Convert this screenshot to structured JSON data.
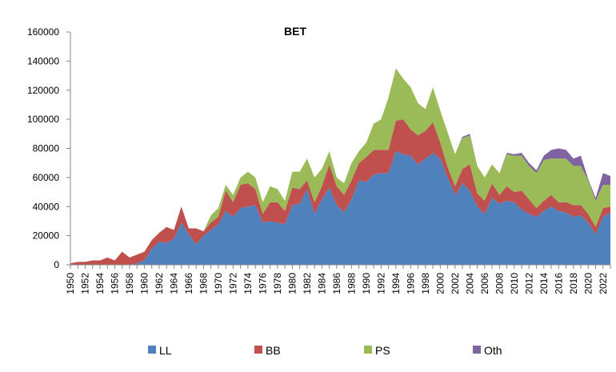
{
  "chart_data": {
    "type": "area",
    "stacked": true,
    "title": "BET",
    "xlabel": "",
    "ylabel": "",
    "ylim": [
      0,
      160000
    ],
    "y_ticks": [
      0,
      20000,
      40000,
      60000,
      80000,
      100000,
      120000,
      140000,
      160000
    ],
    "x_tick_labels": [
      "1950",
      "1952",
      "1954",
      "1956",
      "1958",
      "1960",
      "1962",
      "1964",
      "1966",
      "1968",
      "1970",
      "1972",
      "1974",
      "1976",
      "1978",
      "1980",
      "1982",
      "1984",
      "1986",
      "1988",
      "1990",
      "1992",
      "1994",
      "1996",
      "1998",
      "2000",
      "2002",
      "2004",
      "2006",
      "2008",
      "2010",
      "2012",
      "2014",
      "2016",
      "2018",
      "2020",
      "2022"
    ],
    "grid": false,
    "legend_position": "bottom",
    "x": [
      1950,
      1951,
      1952,
      1953,
      1954,
      1955,
      1956,
      1957,
      1958,
      1959,
      1960,
      1961,
      1962,
      1963,
      1964,
      1965,
      1966,
      1967,
      1968,
      1969,
      1970,
      1971,
      1972,
      1973,
      1974,
      1975,
      1976,
      1977,
      1978,
      1979,
      1980,
      1981,
      1982,
      1983,
      1984,
      1985,
      1986,
      1987,
      1988,
      1989,
      1990,
      1991,
      1992,
      1993,
      1994,
      1995,
      1996,
      1997,
      1998,
      1999,
      2000,
      2001,
      2002,
      2003,
      2004,
      2005,
      2006,
      2007,
      2008,
      2009,
      2010,
      2011,
      2012,
      2013,
      2014,
      2015,
      2016,
      2017,
      2018,
      2019,
      2020,
      2021,
      2022,
      2023
    ],
    "series": [
      {
        "name": "LL",
        "color": "#4F81BD",
        "values": [
          0,
          0,
          0,
          0,
          0,
          0,
          0,
          0,
          0,
          1000,
          3000,
          11000,
          16000,
          15000,
          18000,
          29000,
          21000,
          14000,
          20000,
          24000,
          28000,
          37000,
          33000,
          39000,
          40000,
          41000,
          29000,
          30000,
          29000,
          28000,
          41000,
          42000,
          52000,
          35000,
          45000,
          53000,
          41000,
          36000,
          45000,
          58000,
          57000,
          62000,
          63000,
          63000,
          78000,
          76000,
          75000,
          69000,
          73000,
          77000,
          73000,
          60000,
          48000,
          56000,
          51000,
          40000,
          35000,
          46000,
          42000,
          44000,
          43000,
          38000,
          35000,
          33000,
          37000,
          40000,
          37000,
          36000,
          33000,
          34000,
          29000,
          21000,
          33000,
          36000
        ]
      },
      {
        "name": "BB",
        "color": "#C0504D",
        "values": [
          1000,
          2000,
          2000,
          3000,
          3000,
          5000,
          3000,
          9000,
          5000,
          6000,
          6000,
          6000,
          6000,
          11000,
          6000,
          11000,
          4000,
          11000,
          3000,
          5000,
          5000,
          14000,
          10000,
          16000,
          16000,
          11000,
          6000,
          13000,
          14000,
          9000,
          12000,
          10000,
          6000,
          8000,
          9000,
          16000,
          13000,
          12000,
          13000,
          12000,
          17000,
          17000,
          16000,
          16000,
          21000,
          24000,
          18000,
          20000,
          19000,
          21000,
          11000,
          7000,
          6000,
          10000,
          18000,
          9000,
          9000,
          10000,
          6000,
          10000,
          7000,
          13000,
          10000,
          6000,
          7000,
          8000,
          6000,
          7000,
          8000,
          7000,
          6000,
          5000,
          6000,
          4000
        ]
      },
      {
        "name": "PS",
        "color": "#9BBB59",
        "values": [
          0,
          0,
          0,
          0,
          0,
          0,
          0,
          0,
          0,
          0,
          0,
          0,
          0,
          0,
          0,
          0,
          0,
          0,
          0,
          5000,
          6000,
          4000,
          5000,
          5000,
          8000,
          8000,
          8000,
          11000,
          9000,
          7000,
          11000,
          12000,
          15000,
          17000,
          12000,
          9000,
          6000,
          8000,
          12000,
          8000,
          10000,
          18000,
          21000,
          36000,
          36000,
          28000,
          29000,
          22000,
          15000,
          24000,
          22000,
          24000,
          22000,
          21000,
          20000,
          19000,
          16000,
          13000,
          15000,
          22000,
          25000,
          24000,
          23000,
          24000,
          28000,
          25000,
          30000,
          30000,
          27000,
          27000,
          23000,
          18000,
          16000,
          15000
        ]
      },
      {
        "name": "Oth",
        "color": "#8064A2",
        "values": [
          0,
          0,
          0,
          0,
          0,
          0,
          0,
          0,
          0,
          0,
          0,
          0,
          0,
          0,
          0,
          0,
          0,
          0,
          0,
          0,
          0,
          0,
          0,
          0,
          0,
          0,
          0,
          0,
          0,
          0,
          0,
          0,
          0,
          0,
          0,
          0,
          0,
          0,
          0,
          0,
          0,
          0,
          0,
          0,
          0,
          0,
          0,
          0,
          0,
          0,
          0,
          0,
          0,
          1000,
          1000,
          0,
          0,
          0,
          0,
          1000,
          1000,
          2000,
          2000,
          2000,
          3000,
          6000,
          7000,
          6000,
          5000,
          7000,
          1000,
          2000,
          8000,
          6000
        ]
      }
    ]
  }
}
